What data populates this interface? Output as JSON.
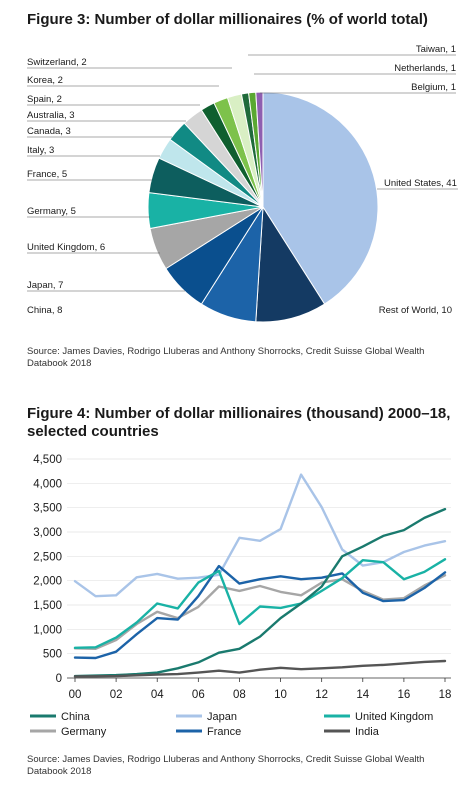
{
  "figure3": {
    "title": "Figure 3: Number of dollar millionaires (% of world total)",
    "source": "Source: James Davies, Rodrigo Lluberas and Anthony Shorrocks, Credit Suisse Global Wealth Databook 2018"
  },
  "figure4": {
    "title": "Figure 4: Number of dollar millionaires (thousand) 2000–18, selected countries",
    "source": "Source: James Davies, Rodrigo Lluberas and Anthony Shorrocks, Credit Suisse Global Wealth Databook 2018"
  },
  "chart_data": [
    {
      "type": "pie",
      "title": "Figure 3: Number of dollar millionaires (% of world total)",
      "slices": [
        {
          "label": "United States, 41",
          "value": 41,
          "color": "#a9c4e8"
        },
        {
          "label": "Rest of World, 10",
          "value": 10,
          "color": "#143a63"
        },
        {
          "label": "China, 8",
          "value": 8,
          "color": "#1c63a8"
        },
        {
          "label": "Japan, 7",
          "value": 7,
          "color": "#0a4f8e"
        },
        {
          "label": "United Kingdom, 6",
          "value": 6,
          "color": "#a6a6a6"
        },
        {
          "label": "Germany, 5",
          "value": 5,
          "color": "#19b2a5"
        },
        {
          "label": "France, 5",
          "value": 5,
          "color": "#0d5e5e"
        },
        {
          "label": "Italy, 3",
          "value": 3,
          "color": "#bfe6ec"
        },
        {
          "label": "Canada, 3",
          "value": 3,
          "color": "#118a84"
        },
        {
          "label": "Australia, 3",
          "value": 3,
          "color": "#d5d5d5"
        },
        {
          "label": "Spain, 2",
          "value": 2,
          "color": "#0f5f2f"
        },
        {
          "label": "Korea, 2",
          "value": 2,
          "color": "#7dc24b"
        },
        {
          "label": "Switzerland, 2",
          "value": 2,
          "color": "#d9efc4"
        },
        {
          "label": "Taiwan, 1",
          "value": 1,
          "color": "#1f6b3a"
        },
        {
          "label": "Netherlands, 1",
          "value": 1,
          "color": "#5aa832"
        },
        {
          "label": "Belgium, 1",
          "value": 1,
          "color": "#8e5fb0"
        }
      ]
    },
    {
      "type": "line",
      "title": "Figure 4: Number of dollar millionaires (thousand) 2000–18, selected countries",
      "x": [
        2000,
        2001,
        2002,
        2003,
        2004,
        2005,
        2006,
        2007,
        2008,
        2009,
        2010,
        2011,
        2012,
        2013,
        2014,
        2015,
        2016,
        2017,
        2018
      ],
      "x_tick_labels": [
        "00",
        "02",
        "04",
        "06",
        "08",
        "10",
        "12",
        "14",
        "16",
        "18"
      ],
      "x_tick_values": [
        2000,
        2002,
        2004,
        2006,
        2008,
        2010,
        2012,
        2014,
        2016,
        2018
      ],
      "ylim": [
        0,
        4500
      ],
      "y_ticks": [
        0,
        500,
        1000,
        1500,
        2000,
        2500,
        3000,
        3500,
        4000,
        4500
      ],
      "y_tick_labels": [
        "0",
        "500",
        "1,000",
        "1,500",
        "2,000",
        "2,500",
        "3,000",
        "3,500",
        "4,000",
        "4,500"
      ],
      "series": [
        {
          "name": "China",
          "color": "#1a7a6e",
          "values": [
            40,
            50,
            60,
            80,
            110,
            200,
            320,
            520,
            600,
            850,
            1230,
            1530,
            1880,
            2500,
            2700,
            2920,
            3040,
            3290,
            3470
          ]
        },
        {
          "name": "Japan",
          "color": "#a9c4e8",
          "values": [
            1990,
            1680,
            1700,
            2070,
            2140,
            2040,
            2060,
            2120,
            2880,
            2820,
            3060,
            4180,
            3510,
            2640,
            2310,
            2380,
            2590,
            2720,
            2810
          ]
        },
        {
          "name": "United Kingdom",
          "color": "#19b2a5",
          "values": [
            620,
            630,
            830,
            1140,
            1530,
            1430,
            1960,
            2200,
            1110,
            1470,
            1440,
            1530,
            1790,
            2050,
            2420,
            2380,
            2030,
            2180,
            2440
          ]
        },
        {
          "name": "Germany",
          "color": "#a6a6a6",
          "values": [
            610,
            600,
            780,
            1110,
            1360,
            1230,
            1460,
            1880,
            1790,
            1890,
            1770,
            1700,
            1960,
            2030,
            1790,
            1610,
            1640,
            1900,
            2110
          ]
        },
        {
          "name": "France",
          "color": "#1c63a8",
          "values": [
            420,
            410,
            540,
            900,
            1230,
            1200,
            1680,
            2300,
            1940,
            2030,
            2090,
            2030,
            2060,
            2150,
            1750,
            1580,
            1600,
            1850,
            2170
          ]
        },
        {
          "name": "India",
          "color": "#555555",
          "values": [
            30,
            35,
            40,
            55,
            70,
            80,
            110,
            150,
            110,
            170,
            210,
            180,
            200,
            220,
            250,
            270,
            300,
            330,
            350
          ]
        }
      ]
    }
  ]
}
